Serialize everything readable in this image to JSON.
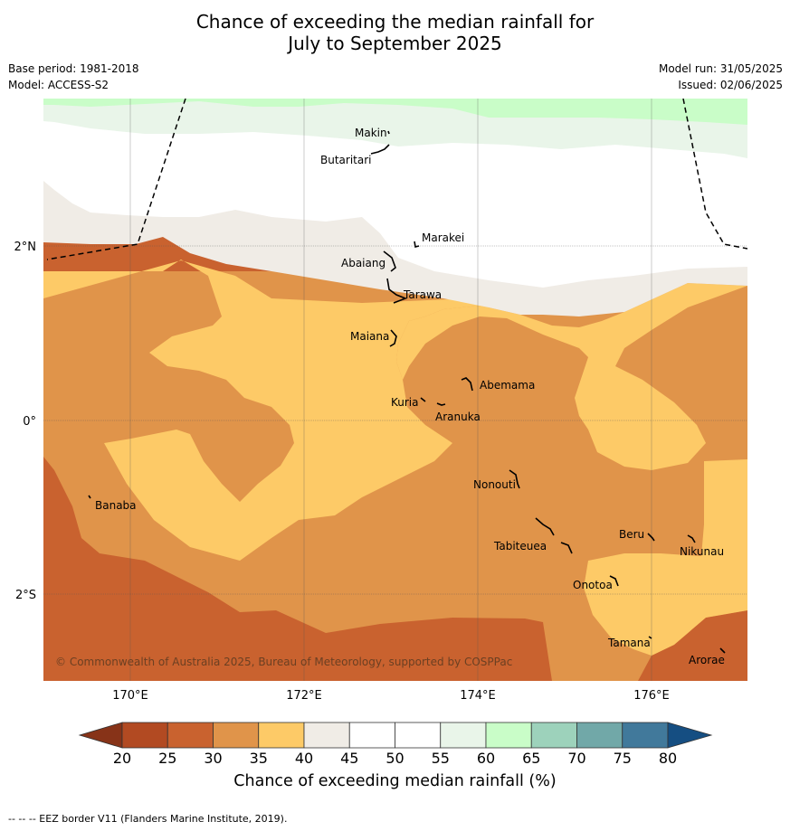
{
  "title_line1": "Chance of exceeding the median rainfall for",
  "title_line2": "July to September 2025",
  "base_period": "Base period: 1981-2018",
  "model": "Model: ACCESS-S2",
  "model_run": "Model run: 31/05/2025",
  "issued": "Issued: 02/06/2025",
  "copyright": "© Commonwealth of Australia 2025, Bureau of Meteorology, supported by COSPPac",
  "colorbar_label": "Chance of exceeding median rainfall (%)",
  "footnote": "--  --  -- EEZ border V11 (Flanders Marine Institute, 2019).",
  "axes": {
    "x_ticks": [
      "170°E",
      "172°E",
      "174°E",
      "176°E"
    ],
    "y_ticks": [
      "2°N",
      "0°",
      "2°S"
    ]
  },
  "colorbar": {
    "ticks": [
      "20",
      "25",
      "30",
      "35",
      "40",
      "45",
      "50",
      "55",
      "60",
      "65",
      "70",
      "75",
      "80"
    ],
    "colors": [
      "#b24a22",
      "#c9622f",
      "#e0944a",
      "#fdca67",
      "#f0ece6",
      "#ffffff",
      "#ffffff",
      "#e9f5e9",
      "#c9fdc8",
      "#9dd2bb",
      "#71a8a8",
      "#41799b"
    ],
    "under_color": "#873318",
    "over_color": "#154e82"
  },
  "islands": [
    "Makin",
    "Butaritari",
    "Marakei",
    "Abaiang",
    "Tarawa",
    "Maiana",
    "Abemama",
    "Kuria",
    "Aranuka",
    "Nonouti",
    "Banaba",
    "Beru",
    "Tabiteuea",
    "Nikunau",
    "Onotoa",
    "Tamana",
    "Arorae"
  ]
}
